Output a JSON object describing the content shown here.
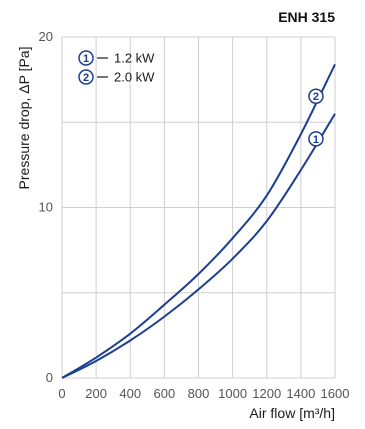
{
  "chart_data": {
    "type": "line",
    "title": "ENH 315",
    "xlabel": "Air flow [m³/h]",
    "ylabel": "Pressure drop, ΔP [Pa]",
    "xlim": [
      0,
      1600
    ],
    "ylim": [
      0,
      20
    ],
    "xticks": [
      0,
      200,
      400,
      600,
      800,
      1000,
      1200,
      1400,
      1600
    ],
    "yticks": [
      0,
      10,
      20
    ],
    "grid": true,
    "legend_position": "top-left",
    "series_color": "#1d3f8f",
    "series": [
      {
        "name": "1.2 kW",
        "marker": "1",
        "x": [
          0,
          200,
          400,
          600,
          800,
          1000,
          1200,
          1400,
          1600
        ],
        "y": [
          0,
          1.0,
          2.2,
          3.6,
          5.2,
          7.0,
          9.2,
          12.2,
          15.5
        ]
      },
      {
        "name": "2.0 kW",
        "marker": "2",
        "x": [
          0,
          200,
          400,
          600,
          800,
          1000,
          1200,
          1400,
          1600
        ],
        "y": [
          0,
          1.2,
          2.6,
          4.3,
          6.1,
          8.2,
          10.7,
          14.3,
          18.4
        ]
      }
    ]
  }
}
